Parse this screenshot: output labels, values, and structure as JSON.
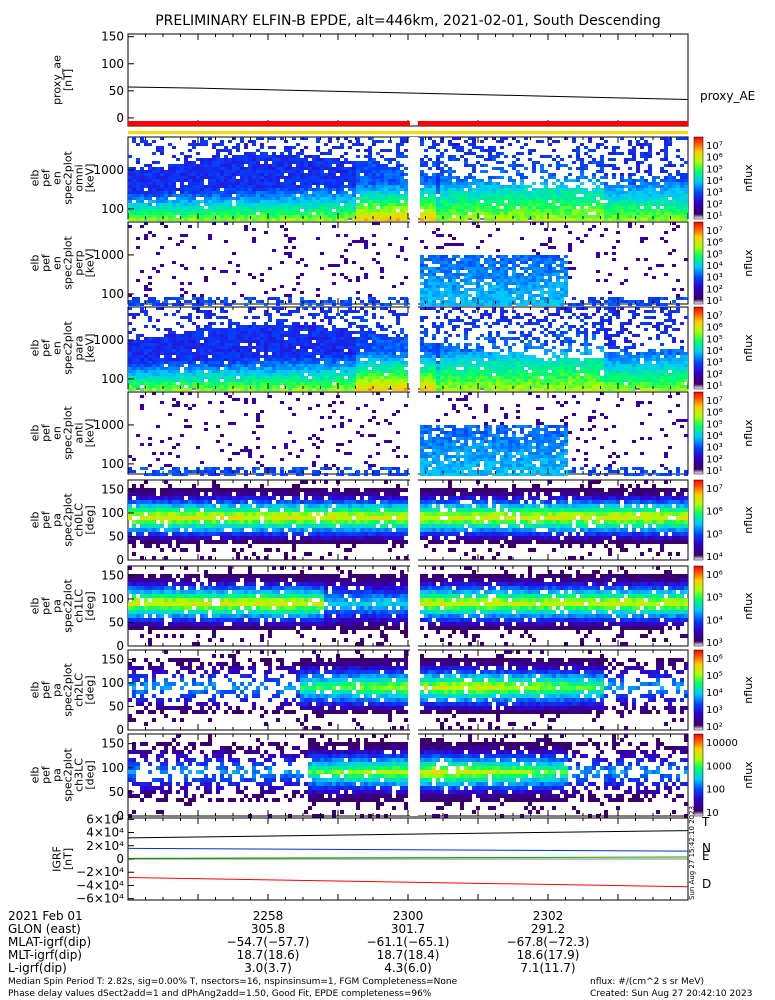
{
  "title": "PRELIMINARY ELFIN-B EPDE, alt=446km, 2021-02-01, South Descending",
  "colors": {
    "axis": "#000000",
    "bar_red": "#ff0000",
    "bar_yellow": "#ffd800",
    "line_T": "#000000",
    "line_N": "#0033cc",
    "line_D": "#ff0000",
    "line_E": "#00aa00"
  },
  "chart_data": [
    {
      "type": "line",
      "id": "proxy_ae",
      "ylabel": [
        "proxy_ae",
        "[nT]"
      ],
      "yticks": [
        "150",
        "100",
        "50",
        "0"
      ],
      "ylim": [
        -15,
        155
      ],
      "legend": "proxy_AE",
      "x_minutes": [
        0,
        2,
        4,
        6,
        8,
        10,
        12,
        14,
        16
      ],
      "values": [
        57,
        55,
        52,
        49,
        46,
        43,
        40,
        37,
        34
      ]
    },
    {
      "type": "heatmap",
      "id": "energy_all",
      "ylabel": [
        "elb",
        "pef",
        "en",
        "spec2plot",
        "omni",
        "[keV]"
      ],
      "yticks": [
        "1000",
        "100"
      ],
      "yscale": "log",
      "ylim": [
        55,
        7000
      ],
      "colorbar": {
        "label": "nflux",
        "ticks": [
          "10⁷",
          "10⁶",
          "10⁵",
          "10⁴",
          "10³",
          "10²",
          "10¹"
        ]
      }
    },
    {
      "type": "heatmap",
      "id": "energy_trapped",
      "ylabel": [
        "elb",
        "pef",
        "en",
        "spec2plot",
        "perp",
        "[keV]"
      ],
      "yticks": [
        "1000",
        "100"
      ],
      "yscale": "log",
      "ylim": [
        55,
        7000
      ],
      "colorbar": {
        "label": "nflux",
        "ticks": [
          "10⁷",
          "10⁶",
          "10⁵",
          "10⁴",
          "10³",
          "10²",
          "10¹"
        ]
      }
    },
    {
      "type": "heatmap",
      "id": "energy_para",
      "ylabel": [
        "elb",
        "pef",
        "en",
        "spec2plot",
        "para",
        "[keV]"
      ],
      "yticks": [
        "1000",
        "100"
      ],
      "yscale": "log",
      "ylim": [
        55,
        7000
      ],
      "colorbar": {
        "label": "nflux",
        "ticks": [
          "10⁷",
          "10⁶",
          "10⁵",
          "10⁴",
          "10³",
          "10²",
          "10¹"
        ]
      }
    },
    {
      "type": "heatmap",
      "id": "energy_anti",
      "ylabel": [
        "elb",
        "pef",
        "en",
        "spec2plot",
        "anti",
        "[keV]"
      ],
      "yticks": [
        "1000",
        "100"
      ],
      "yscale": "log",
      "ylim": [
        55,
        7000
      ],
      "colorbar": {
        "label": "nflux",
        "ticks": [
          "10⁷",
          "10⁶",
          "10⁵",
          "10⁴",
          "10³",
          "10²",
          "10¹"
        ]
      }
    },
    {
      "type": "heatmap",
      "id": "pa_ch0",
      "ylabel": [
        "elb",
        "pef",
        "pa",
        "spec2plot",
        "ch0LC",
        "[deg]"
      ],
      "yticks": [
        "150",
        "100",
        "50",
        "0"
      ],
      "ylim": [
        0,
        170
      ],
      "colorbar": {
        "label": "nflux",
        "ticks": [
          "10⁷",
          "10⁶",
          "10⁵",
          "10⁴"
        ]
      }
    },
    {
      "type": "heatmap",
      "id": "pa_ch1",
      "ylabel": [
        "elb",
        "pef",
        "pa",
        "spec2plot",
        "ch1LC",
        "[deg]"
      ],
      "yticks": [
        "150",
        "100",
        "50",
        "0"
      ],
      "ylim": [
        0,
        170
      ],
      "colorbar": {
        "label": "nflux",
        "ticks": [
          "10⁶",
          "10⁵",
          "10⁴",
          "10³"
        ]
      }
    },
    {
      "type": "heatmap",
      "id": "pa_ch2",
      "ylabel": [
        "elb",
        "pef",
        "pa",
        "spec2plot",
        "ch2LC",
        "[deg]"
      ],
      "yticks": [
        "150",
        "100",
        "50",
        "0"
      ],
      "ylim": [
        0,
        170
      ],
      "colorbar": {
        "label": "nflux",
        "ticks": [
          "10⁶",
          "10⁵",
          "10⁴",
          "10³",
          "10²"
        ]
      }
    },
    {
      "type": "heatmap",
      "id": "pa_ch3",
      "ylabel": [
        "elb",
        "pef",
        "pa",
        "spec2plot",
        "ch3LC",
        "[deg]"
      ],
      "yticks": [
        "150",
        "100",
        "50",
        "0"
      ],
      "ylim": [
        0,
        170
      ],
      "colorbar": {
        "label": "nflux",
        "ticks": [
          "10000",
          "1000",
          "100",
          "10"
        ]
      }
    },
    {
      "type": "line",
      "id": "igrf",
      "ylabel": [
        "IGRF",
        "[nT]"
      ],
      "yticks": [
        "6×10⁴",
        "4×10⁴",
        "2×10⁴",
        "0",
        "−2×10⁴",
        "−4×10⁴",
        "−6×10⁴"
      ],
      "ylim": [
        -62000,
        62000
      ],
      "series": [
        {
          "name": "T",
          "values": [
            32000,
            43000
          ]
        },
        {
          "name": "N",
          "values": [
            16000,
            12000
          ]
        },
        {
          "name": "E",
          "values": [
            1000,
            3000
          ]
        },
        {
          "name": "D",
          "values": [
            -28000,
            -42000
          ]
        }
      ],
      "side_stamp": "Sun Aug 27 15:42:10 2023"
    }
  ],
  "x_axis": {
    "rows": [
      {
        "label": "2021 Feb 01",
        "values": [
          "2258",
          "2300",
          "2302"
        ]
      },
      {
        "label": "GLON (east)",
        "values": [
          "305.8",
          "301.7",
          "291.2"
        ]
      },
      {
        "label": "MLAT-igrf(dip)",
        "values": [
          "−54.7(−57.7)",
          "−61.1(−65.1)",
          "−67.8(−72.3)"
        ]
      },
      {
        "label": "MLT-igrf(dip)",
        "values": [
          "18.7(18.6)",
          "18.7(18.4)",
          "18.6(17.9)"
        ]
      },
      {
        "label": "L-igrf(dip)",
        "values": [
          "3.0(3.7)",
          "4.3(6.0)",
          "7.1(11.7)"
        ]
      }
    ],
    "tick_minutes": [
      4,
      8,
      12
    ]
  },
  "footer": {
    "left_line1": "Median Spin Period T: 2.82s, sig=0.00% T, nsectors=16, nspinsinsum=1, FGM Completeness=None",
    "left_line2": "Phase delay values dSect2add=1 and dPhAng2add=1.50, Good Fit, EPDE completeness=96%",
    "right_line1": "nflux: #/(cm^2 s sr MeV)",
    "right_line2": "Created: Sun Aug 27 20:42:10 2023"
  }
}
